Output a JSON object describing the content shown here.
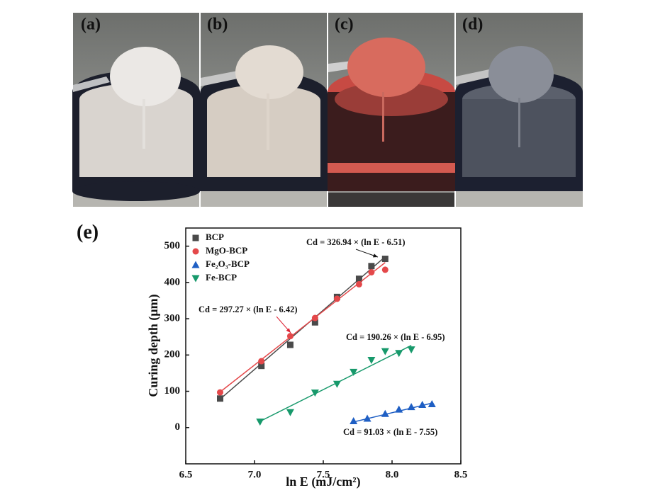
{
  "panels": [
    "(a)",
    "(b)",
    "(c)",
    "(d)"
  ],
  "chart_data": {
    "type": "scatter",
    "panel": "(e)",
    "x_label": "ln E (mJ/cm²)",
    "y_label": "Curing depth (μm)",
    "xlim": [
      6.5,
      8.5
    ],
    "ylim": [
      -100,
      550
    ],
    "xticks": [
      6.5,
      {
        "value": 7,
        "label": "7.0"
      },
      7.5,
      {
        "value": 8,
        "label": "8.0"
      },
      8.5
    ],
    "yticks": [
      0,
      100,
      200,
      300,
      400,
      500
    ],
    "legend": "top-left",
    "series": [
      {
        "name": "BCP",
        "color": "#4a4a4a",
        "marker": "square",
        "x": [
          6.75,
          7.05,
          7.26,
          7.44,
          7.6,
          7.76,
          7.85,
          7.95
        ],
        "values": [
          80,
          170,
          228,
          290,
          360,
          410,
          445,
          465
        ],
        "fit": {
          "slope": 326.94,
          "x0": 6.51,
          "label": "Cd = 326.94 × (ln E - 6.51)"
        }
      },
      {
        "name": "MgO-BCP",
        "color": "#e4484a",
        "marker": "circle",
        "x": [
          6.75,
          7.05,
          7.26,
          7.44,
          7.6,
          7.76,
          7.85,
          7.95
        ],
        "values": [
          97,
          183,
          252,
          302,
          355,
          395,
          428,
          435
        ],
        "fit": {
          "slope": 297.27,
          "x0": 6.42,
          "label": "Cd = 297.27 × (ln E - 6.42)"
        }
      },
      {
        "name": "Fe₂O₃-BCP",
        "color": "#1f5fc4",
        "marker": "triangle-up",
        "x": [
          7.72,
          7.82,
          7.95,
          8.05,
          8.14,
          8.22,
          8.29
        ],
        "values": [
          18,
          25,
          38,
          50,
          57,
          63,
          65
        ],
        "fit": {
          "slope": 91.03,
          "x0": 7.55,
          "label": "Cd = 91.03 × (ln E - 7.55)"
        }
      },
      {
        "name": "Fe-BCP",
        "color": "#17996b",
        "marker": "triangle-down",
        "x": [
          7.04,
          7.26,
          7.44,
          7.6,
          7.72,
          7.85,
          7.95,
          8.05,
          8.14
        ],
        "values": [
          16,
          42,
          96,
          120,
          153,
          186,
          210,
          205,
          215
        ],
        "fit": {
          "slope": 190.26,
          "x0": 6.95,
          "label": "Cd = 190.26 × (ln E - 6.95)"
        }
      }
    ]
  }
}
